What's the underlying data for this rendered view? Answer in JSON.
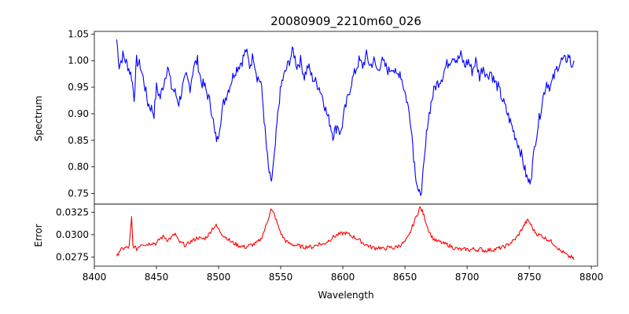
{
  "chart_data": [
    {
      "type": "line",
      "title": "20080909_2210m60_026",
      "xlabel": "",
      "ylabel": "Spectrum",
      "xlim": [
        8400,
        8805
      ],
      "ylim": [
        0.73,
        1.055
      ],
      "xticks": [
        8400,
        8450,
        8500,
        8550,
        8600,
        8650,
        8700,
        8750,
        8800
      ],
      "yticks": [
        0.75,
        0.8,
        0.85,
        0.9,
        0.95,
        1.0,
        1.05
      ],
      "ytick_labels": [
        "0.75",
        "0.80",
        "0.85",
        "0.90",
        "0.95",
        "1.00",
        "1.05"
      ],
      "grid": false,
      "series": [
        {
          "color": "#0000ff",
          "x_range": [
            8418,
            8786
          ],
          "points": [
            [
              8418,
              1.04
            ],
            [
              8420,
              0.99
            ],
            [
              8423,
              1.01
            ],
            [
              8427,
              0.99
            ],
            [
              8430,
              0.97
            ],
            [
              8432,
              0.93
            ],
            [
              8434,
              1.0
            ],
            [
              8437,
              0.99
            ],
            [
              8440,
              0.96
            ],
            [
              8443,
              0.92
            ],
            [
              8446,
              0.91
            ],
            [
              8448,
              0.9
            ],
            [
              8450,
              0.95
            ],
            [
              8453,
              0.93
            ],
            [
              8456,
              0.96
            ],
            [
              8459,
              0.99
            ],
            [
              8462,
              0.95
            ],
            [
              8465,
              0.94
            ],
            [
              8468,
              0.92
            ],
            [
              8471,
              0.95
            ],
            [
              8474,
              0.97
            ],
            [
              8477,
              0.95
            ],
            [
              8480,
              0.99
            ],
            [
              8483,
              1.0
            ],
            [
              8486,
              0.96
            ],
            [
              8489,
              0.95
            ],
            [
              8492,
              0.93
            ],
            [
              8495,
              0.9
            ],
            [
              8497,
              0.86
            ],
            [
              8499,
              0.85
            ],
            [
              8501,
              0.88
            ],
            [
              8504,
              0.92
            ],
            [
              8507,
              0.94
            ],
            [
              8510,
              0.96
            ],
            [
              8513,
              0.98
            ],
            [
              8516,
              0.99
            ],
            [
              8519,
              1.0
            ],
            [
              8522,
              1.02
            ],
            [
              8525,
              0.99
            ],
            [
              8528,
              1.01
            ],
            [
              8531,
              0.97
            ],
            [
              8534,
              0.96
            ],
            [
              8536,
              0.91
            ],
            [
              8538,
              0.85
            ],
            [
              8540,
              0.8
            ],
            [
              8542,
              0.77
            ],
            [
              8543,
              0.78
            ],
            [
              8545,
              0.82
            ],
            [
              8547,
              0.88
            ],
            [
              8549,
              0.93
            ],
            [
              8551,
              0.96
            ],
            [
              8554,
              0.98
            ],
            [
              8557,
              1.0
            ],
            [
              8560,
              1.02
            ],
            [
              8563,
              0.99
            ],
            [
              8566,
              1.0
            ],
            [
              8569,
              0.97
            ],
            [
              8572,
              0.99
            ],
            [
              8575,
              0.97
            ],
            [
              8578,
              0.96
            ],
            [
              8581,
              0.95
            ],
            [
              8584,
              0.93
            ],
            [
              8587,
              0.9
            ],
            [
              8590,
              0.88
            ],
            [
              8592,
              0.86
            ],
            [
              8594,
              0.87
            ],
            [
              8596,
              0.88
            ],
            [
              8598,
              0.86
            ],
            [
              8601,
              0.9
            ],
            [
              8604,
              0.93
            ],
            [
              8607,
              0.96
            ],
            [
              8610,
              0.98
            ],
            [
              8613,
              1.0
            ],
            [
              8616,
              0.99
            ],
            [
              8619,
              1.01
            ],
            [
              8622,
              0.99
            ],
            [
              8625,
              1.0
            ],
            [
              8628,
              0.98
            ],
            [
              8631,
              1.0
            ],
            [
              8634,
              0.99
            ],
            [
              8637,
              0.98
            ],
            [
              8640,
              0.99
            ],
            [
              8643,
              0.97
            ],
            [
              8646,
              0.98
            ],
            [
              8649,
              0.95
            ],
            [
              8652,
              0.92
            ],
            [
              8655,
              0.88
            ],
            [
              8657,
              0.82
            ],
            [
              8659,
              0.78
            ],
            [
              8661,
              0.75
            ],
            [
              8662,
              0.745
            ],
            [
              8664,
              0.77
            ],
            [
              8666,
              0.82
            ],
            [
              8668,
              0.88
            ],
            [
              8671,
              0.92
            ],
            [
              8674,
              0.95
            ],
            [
              8677,
              0.96
            ],
            [
              8680,
              0.97
            ],
            [
              8683,
              0.99
            ],
            [
              8686,
              1.0
            ],
            [
              8689,
              1.01
            ],
            [
              8692,
              1.0
            ],
            [
              8695,
              1.01
            ],
            [
              8698,
              0.99
            ],
            [
              8701,
              1.0
            ],
            [
              8704,
              0.98
            ],
            [
              8707,
              1.0
            ],
            [
              8710,
              0.97
            ],
            [
              8713,
              0.99
            ],
            [
              8716,
              0.97
            ],
            [
              8719,
              0.98
            ],
            [
              8722,
              0.96
            ],
            [
              8725,
              0.95
            ],
            [
              8728,
              0.93
            ],
            [
              8731,
              0.91
            ],
            [
              8734,
              0.89
            ],
            [
              8737,
              0.87
            ],
            [
              8740,
              0.85
            ],
            [
              8743,
              0.83
            ],
            [
              8746,
              0.8
            ],
            [
              8748,
              0.78
            ],
            [
              8750,
              0.77
            ],
            [
              8752,
              0.79
            ],
            [
              8755,
              0.85
            ],
            [
              8758,
              0.89
            ],
            [
              8761,
              0.93
            ],
            [
              8764,
              0.96
            ],
            [
              8767,
              0.95
            ],
            [
              8770,
              0.97
            ],
            [
              8773,
              0.99
            ],
            [
              8776,
              1.0
            ],
            [
              8779,
              1.0
            ],
            [
              8782,
              1.01
            ],
            [
              8784,
              0.99
            ],
            [
              8786,
              1.0
            ]
          ]
        }
      ]
    },
    {
      "type": "line",
      "title": "",
      "xlabel": "Wavelength",
      "ylabel": "Error",
      "xlim": [
        8400,
        8805
      ],
      "ylim": [
        0.0265,
        0.0334
      ],
      "xticks": [
        8400,
        8450,
        8500,
        8550,
        8600,
        8650,
        8700,
        8750,
        8800
      ],
      "yticks": [
        0.0275,
        0.03,
        0.0325
      ],
      "ytick_labels": [
        "0.0275",
        "0.0300",
        "0.0325"
      ],
      "grid": false,
      "series": [
        {
          "color": "#ff0000",
          "x_range": [
            8418,
            8786
          ],
          "points": [
            [
              8418,
              0.0274
            ],
            [
              8420,
              0.0282
            ],
            [
              8424,
              0.0285
            ],
            [
              8428,
              0.0286
            ],
            [
              8430,
              0.0319
            ],
            [
              8431,
              0.0288
            ],
            [
              8434,
              0.0284
            ],
            [
              8438,
              0.029
            ],
            [
              8442,
              0.0289
            ],
            [
              8446,
              0.0291
            ],
            [
              8450,
              0.029
            ],
            [
              8453,
              0.0296
            ],
            [
              8456,
              0.0298
            ],
            [
              8459,
              0.0294
            ],
            [
              8462,
              0.0297
            ],
            [
              8465,
              0.0301
            ],
            [
              8468,
              0.0292
            ],
            [
              8471,
              0.029
            ],
            [
              8474,
              0.0288
            ],
            [
              8477,
              0.0292
            ],
            [
              8480,
              0.0294
            ],
            [
              8483,
              0.0297
            ],
            [
              8486,
              0.0295
            ],
            [
              8489,
              0.0296
            ],
            [
              8492,
              0.03
            ],
            [
              8495,
              0.0307
            ],
            [
              8498,
              0.031
            ],
            [
              8501,
              0.0304
            ],
            [
              8504,
              0.0299
            ],
            [
              8507,
              0.0296
            ],
            [
              8510,
              0.0292
            ],
            [
              8513,
              0.029
            ],
            [
              8516,
              0.0288
            ],
            [
              8519,
              0.0287
            ],
            [
              8522,
              0.0286
            ],
            [
              8525,
              0.0288
            ],
            [
              8528,
              0.0289
            ],
            [
              8531,
              0.0291
            ],
            [
              8534,
              0.0295
            ],
            [
              8537,
              0.0305
            ],
            [
              8540,
              0.0318
            ],
            [
              8542,
              0.0328
            ],
            [
              8545,
              0.0322
            ],
            [
              8548,
              0.0309
            ],
            [
              8551,
              0.0299
            ],
            [
              8554,
              0.0293
            ],
            [
              8557,
              0.029
            ],
            [
              8560,
              0.0289
            ],
            [
              8563,
              0.0288
            ],
            [
              8566,
              0.0287
            ],
            [
              8569,
              0.0286
            ],
            [
              8572,
              0.0287
            ],
            [
              8575,
              0.0286
            ],
            [
              8578,
              0.0288
            ],
            [
              8581,
              0.029
            ],
            [
              8584,
              0.0289
            ],
            [
              8587,
              0.0292
            ],
            [
              8590,
              0.0295
            ],
            [
              8593,
              0.0298
            ],
            [
              8596,
              0.03
            ],
            [
              8599,
              0.0301
            ],
            [
              8602,
              0.0302
            ],
            [
              8605,
              0.03
            ],
            [
              8608,
              0.0298
            ],
            [
              8611,
              0.0296
            ],
            [
              8614,
              0.0293
            ],
            [
              8617,
              0.029
            ],
            [
              8620,
              0.0288
            ],
            [
              8623,
              0.0286
            ],
            [
              8626,
              0.0285
            ],
            [
              8629,
              0.0286
            ],
            [
              8632,
              0.0284
            ],
            [
              8635,
              0.0285
            ],
            [
              8638,
              0.0286
            ],
            [
              8641,
              0.0285
            ],
            [
              8644,
              0.0287
            ],
            [
              8647,
              0.0289
            ],
            [
              8650,
              0.0292
            ],
            [
              8653,
              0.0298
            ],
            [
              8656,
              0.0309
            ],
            [
              8659,
              0.032
            ],
            [
              8662,
              0.033
            ],
            [
              8664,
              0.0326
            ],
            [
              8666,
              0.0318
            ],
            [
              8669,
              0.0305
            ],
            [
              8672,
              0.0297
            ],
            [
              8675,
              0.0293
            ],
            [
              8678,
              0.0292
            ],
            [
              8681,
              0.029
            ],
            [
              8684,
              0.0289
            ],
            [
              8687,
              0.0287
            ],
            [
              8690,
              0.0285
            ],
            [
              8693,
              0.0284
            ],
            [
              8696,
              0.0283
            ],
            [
              8699,
              0.0284
            ],
            [
              8702,
              0.0283
            ],
            [
              8705,
              0.0284
            ],
            [
              8708,
              0.0283
            ],
            [
              8711,
              0.0284
            ],
            [
              8714,
              0.0282
            ],
            [
              8717,
              0.0283
            ],
            [
              8720,
              0.0283
            ],
            [
              8723,
              0.0284
            ],
            [
              8726,
              0.0285
            ],
            [
              8729,
              0.0286
            ],
            [
              8732,
              0.0288
            ],
            [
              8735,
              0.0291
            ],
            [
              8738,
              0.0294
            ],
            [
              8741,
              0.0299
            ],
            [
              8744,
              0.0306
            ],
            [
              8747,
              0.0313
            ],
            [
              8749,
              0.0316
            ],
            [
              8751,
              0.0312
            ],
            [
              8754,
              0.0304
            ],
            [
              8757,
              0.03
            ],
            [
              8760,
              0.0299
            ],
            [
              8763,
              0.0296
            ],
            [
              8766,
              0.0294
            ],
            [
              8769,
              0.0291
            ],
            [
              8772,
              0.0287
            ],
            [
              8775,
              0.0282
            ],
            [
              8778,
              0.028
            ],
            [
              8781,
              0.0276
            ],
            [
              8784,
              0.0275
            ],
            [
              8786,
              0.0272
            ]
          ]
        }
      ]
    }
  ]
}
